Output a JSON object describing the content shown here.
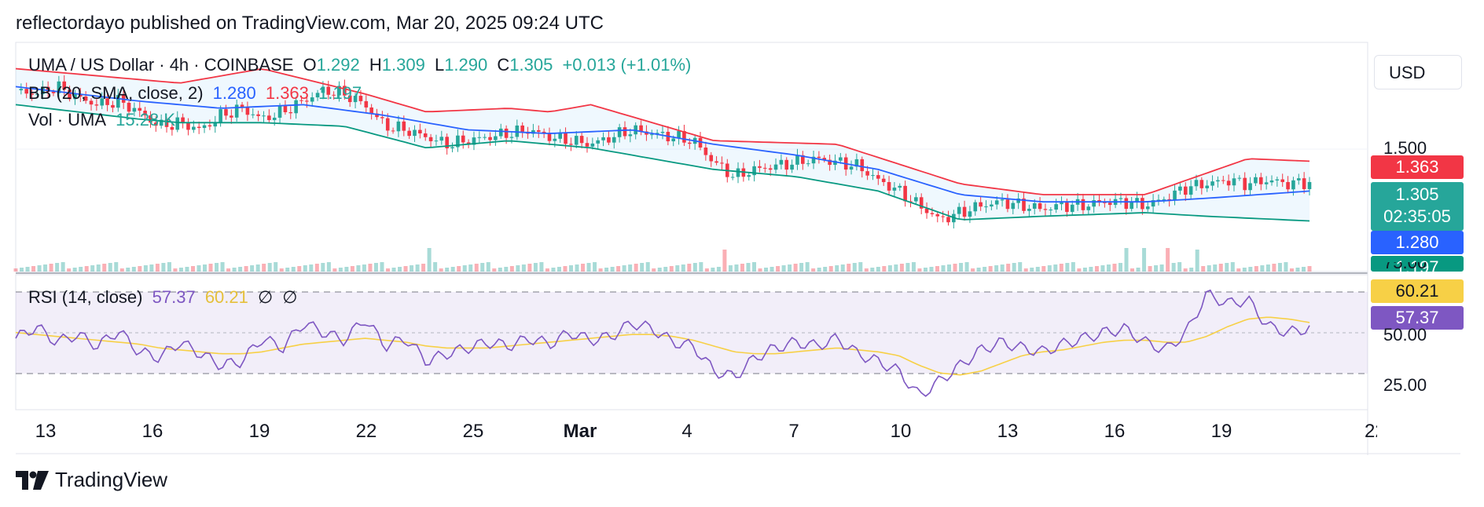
{
  "header": {
    "published": "reflectordayo published on TradingView.com, Mar 20, 2025 09:24 UTC"
  },
  "legend": {
    "symbol": "UMA / US Dollar · 4h · COINBASE",
    "o_label": "O",
    "o": "1.292",
    "h_label": "H",
    "h": "1.309",
    "l_label": "L",
    "l": "1.290",
    "c_label": "C",
    "c": "1.305",
    "change": "+0.013 (+1.01%)",
    "bb_label": "BB (20, SMA, close, 2)",
    "bb_mid": "1.280",
    "bb_upper": "1.363",
    "bb_lower": "1.197",
    "vol_label": "Vol · UMA",
    "vol": "15.28 K",
    "rsi_label": "RSI (14, close)",
    "rsi": "57.37",
    "rsi_ma": "60.21",
    "null1": "∅",
    "null2": "∅"
  },
  "currency": "USD",
  "price_axis": {
    "tick_1500": "1.500",
    "upper_box": "1.363",
    "last_box": "1.305",
    "countdown": "02:35:05",
    "mid_box": "1.280",
    "lower_box": "1.197"
  },
  "rsi_axis": {
    "tick_75": "75.00",
    "rsi_ma_box": "60.21",
    "rsi_box": "57.37",
    "tick_50": "50.00",
    "tick_25": "25.00"
  },
  "x_axis": [
    "13",
    "16",
    "19",
    "22",
    "25",
    "Mar",
    "4",
    "7",
    "10",
    "13",
    "16",
    "19",
    "22"
  ],
  "brand": "TradingView",
  "colors": {
    "up": "#26a69a",
    "down": "#f23645",
    "bb_mid": "#2962ff",
    "rsi": "#7e57c2",
    "rsi_ma": "#f7d046"
  },
  "chart_data": [
    {
      "type": "candlestick",
      "title": "UMA / US Dollar · 4h · COINBASE",
      "x": [
        "13",
        "16",
        "19",
        "22",
        "25",
        "Mar",
        "4",
        "7",
        "10",
        "13",
        "16",
        "19",
        "22"
      ],
      "ylim": [
        1.1,
        1.68
      ],
      "close_path": [
        [
          0,
          1.56
        ],
        [
          1,
          1.55
        ],
        [
          2,
          1.57
        ],
        [
          3,
          1.54
        ],
        [
          4,
          1.52
        ],
        [
          5,
          1.53
        ],
        [
          6,
          1.5
        ],
        [
          7,
          1.46
        ],
        [
          8,
          1.47
        ],
        [
          9,
          1.45
        ],
        [
          10,
          1.49
        ],
        [
          11,
          1.51
        ],
        [
          12,
          1.48
        ],
        [
          13,
          1.5
        ],
        [
          14,
          1.53
        ],
        [
          15,
          1.56
        ],
        [
          16,
          1.55
        ],
        [
          17,
          1.52
        ],
        [
          18,
          1.46
        ],
        [
          19,
          1.45
        ],
        [
          20,
          1.43
        ],
        [
          21,
          1.41
        ],
        [
          22,
          1.42
        ],
        [
          23,
          1.43
        ],
        [
          24,
          1.44
        ],
        [
          25,
          1.45
        ],
        [
          26,
          1.43
        ],
        [
          27,
          1.42
        ],
        [
          28,
          1.41
        ],
        [
          29,
          1.43
        ],
        [
          30,
          1.45
        ],
        [
          31,
          1.44
        ],
        [
          32,
          1.43
        ],
        [
          33,
          1.42
        ],
        [
          34,
          1.36
        ],
        [
          35,
          1.32
        ],
        [
          36,
          1.34
        ],
        [
          37,
          1.35
        ],
        [
          38,
          1.36
        ],
        [
          39,
          1.37
        ],
        [
          40,
          1.36
        ],
        [
          41,
          1.35
        ],
        [
          42,
          1.31
        ],
        [
          43,
          1.28
        ],
        [
          44,
          1.24
        ],
        [
          45,
          1.2
        ],
        [
          46,
          1.22
        ],
        [
          47,
          1.24
        ],
        [
          48,
          1.25
        ],
        [
          49,
          1.24
        ],
        [
          50,
          1.23
        ],
        [
          51,
          1.24
        ],
        [
          52,
          1.24
        ],
        [
          53,
          1.25
        ],
        [
          54,
          1.25
        ],
        [
          55,
          1.24
        ],
        [
          56,
          1.26
        ],
        [
          57,
          1.29
        ],
        [
          58,
          1.3
        ],
        [
          59,
          1.31
        ],
        [
          60,
          1.3
        ],
        [
          61,
          1.31
        ],
        [
          62,
          1.3
        ],
        [
          63,
          1.305
        ]
      ],
      "bb_upper": [
        [
          0,
          1.62
        ],
        [
          8,
          1.58
        ],
        [
          12,
          1.62
        ],
        [
          17,
          1.55
        ],
        [
          20,
          1.5
        ],
        [
          24,
          1.51
        ],
        [
          26,
          1.5
        ],
        [
          28,
          1.52
        ],
        [
          34,
          1.42
        ],
        [
          40,
          1.41
        ],
        [
          46,
          1.3
        ],
        [
          50,
          1.27
        ],
        [
          55,
          1.27
        ],
        [
          58,
          1.33
        ],
        [
          60,
          1.37
        ],
        [
          63,
          1.363
        ]
      ],
      "bb_middle": [
        [
          0,
          1.57
        ],
        [
          6,
          1.53
        ],
        [
          10,
          1.51
        ],
        [
          14,
          1.52
        ],
        [
          18,
          1.49
        ],
        [
          22,
          1.45
        ],
        [
          26,
          1.44
        ],
        [
          30,
          1.45
        ],
        [
          34,
          1.41
        ],
        [
          38,
          1.38
        ],
        [
          42,
          1.34
        ],
        [
          46,
          1.27
        ],
        [
          50,
          1.25
        ],
        [
          55,
          1.25
        ],
        [
          58,
          1.26
        ],
        [
          63,
          1.28
        ]
      ],
      "bb_lower": [
        [
          0,
          1.52
        ],
        [
          6,
          1.48
        ],
        [
          8,
          1.47
        ],
        [
          12,
          1.47
        ],
        [
          16,
          1.46
        ],
        [
          20,
          1.4
        ],
        [
          24,
          1.42
        ],
        [
          28,
          1.4
        ],
        [
          34,
          1.34
        ],
        [
          38,
          1.32
        ],
        [
          42,
          1.28
        ],
        [
          46,
          1.2
        ],
        [
          50,
          1.21
        ],
        [
          55,
          1.22
        ],
        [
          58,
          1.21
        ],
        [
          63,
          1.197
        ]
      ],
      "bollinger": {
        "period": 20,
        "upper": 1.363,
        "middle": 1.28,
        "lower": 1.197
      },
      "last": {
        "open": 1.292,
        "high": 1.309,
        "low": 1.29,
        "close": 1.305
      },
      "volume_last": "15.28 K"
    },
    {
      "type": "line",
      "title": "RSI (14, close)",
      "ylim": [
        15,
        85
      ],
      "levels": [
        75,
        50,
        25
      ],
      "series": [
        {
          "name": "RSI",
          "values": [
            52,
            58,
            50,
            54,
            48,
            56,
            45,
            42,
            50,
            44,
            38,
            40,
            52,
            47,
            60,
            55,
            51,
            62,
            48,
            52,
            40,
            44,
            47,
            50,
            48,
            52,
            49,
            55,
            51,
            53,
            60,
            57,
            50,
            48,
            35,
            32,
            42,
            47,
            50,
            48,
            52,
            44,
            40,
            35,
            22,
            30,
            38,
            46,
            50,
            47,
            45,
            49,
            52,
            55,
            57,
            50,
            46,
            55,
            75,
            70,
            72,
            58,
            55,
            57.37
          ]
        },
        {
          "name": "MA",
          "values": [
            55,
            54,
            53,
            52,
            51,
            50,
            49,
            47,
            46,
            45,
            44,
            44,
            45,
            47,
            49,
            50,
            51,
            52,
            51,
            50,
            48,
            47,
            47,
            47,
            48,
            49,
            50,
            51,
            52,
            53,
            54,
            54,
            53,
            51,
            48,
            45,
            44,
            44,
            45,
            46,
            47,
            46,
            45,
            43,
            38,
            34,
            33,
            35,
            39,
            43,
            45,
            46,
            48,
            50,
            51,
            51,
            50,
            50,
            53,
            58,
            62,
            63,
            62,
            60.21
          ]
        }
      ],
      "value": 57.37,
      "ma_value": 60.21
    }
  ]
}
